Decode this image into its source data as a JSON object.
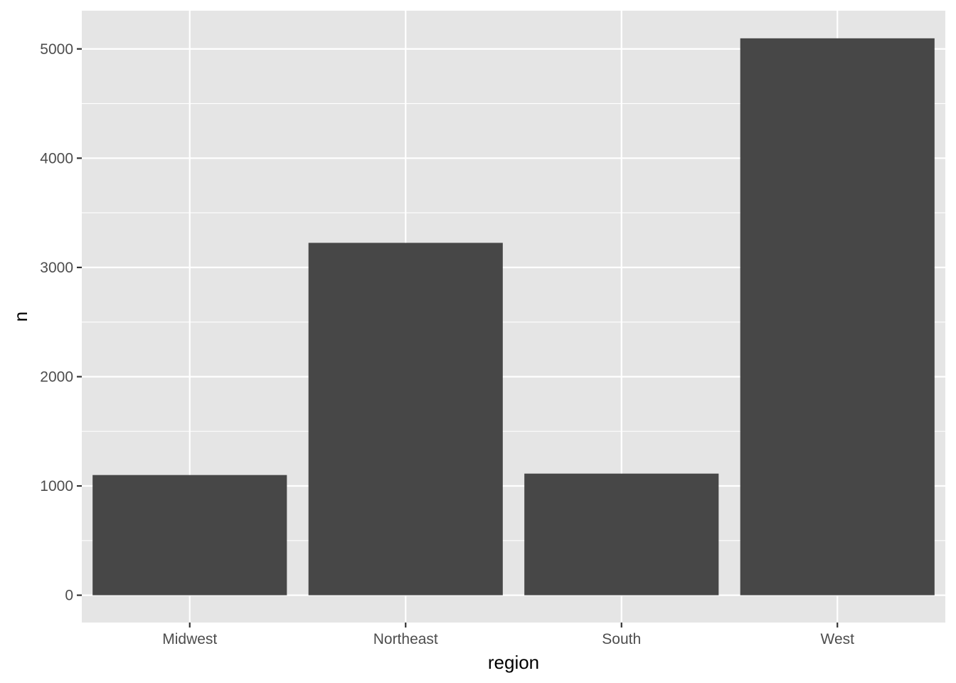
{
  "chart_data": {
    "type": "bar",
    "categories": [
      "Midwest",
      "Northeast",
      "South",
      "West"
    ],
    "values": [
      1100,
      3225,
      1113,
      5097
    ],
    "xlabel": "region",
    "ylabel": "n",
    "ylim": [
      -250,
      5350
    ],
    "yticks": [
      0,
      1000,
      2000,
      3000,
      4000,
      5000
    ],
    "ytick_labels": [
      "0",
      "1000",
      "2000",
      "3000",
      "4000",
      "5000"
    ],
    "grid": true,
    "colors": {
      "panel_background": "#e5e5e5",
      "grid_line": "#ffffff",
      "bar_fill": "#474747",
      "tick_mark": "#333333",
      "tick_label": "#4d4d4d",
      "axis_title": "#000000"
    }
  }
}
